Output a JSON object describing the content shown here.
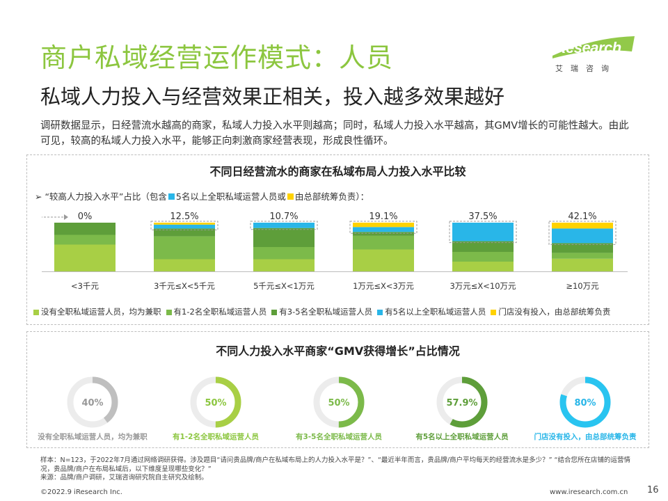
{
  "header": {
    "title": "商户私域经营运作模式：人员",
    "subtitle": "私域人力投入与经营效果正相关，投入越多效果越好",
    "intro": "调研数据显示，日经营流水越高的商家，私域人力投入水平则越高；同时，私域人力投入水平越高，其GMV增长的可能性越大。由此可见，较高的私域人力投入水平，能够正向刺激商家经营表现，形成良性循环。"
  },
  "logo": {
    "word": "iResearch",
    "cn": "艾瑞咨询"
  },
  "panel1": {
    "title": "不同日经营流水的商家在私域布局人力投入水平比较",
    "note_prefix": "➢  “较高人力投入水平”占比（包含",
    "note_mid": "5名以上全职私域运营人员或",
    "note_suffix": "由总部统筹负责）："
  },
  "panel2": {
    "title": "不同人力投入水平商家“GMV获得增长”占比情况"
  },
  "chart_data": [
    {
      "type": "bar",
      "stacked": true,
      "categories": [
        "<3千元",
        "3千元≤X<5千元",
        "5千元≤X<1万元",
        "1万元≤X<3万元",
        "3万元≤X<10万元",
        "≥10万元"
      ],
      "top_labels": [
        "0%",
        "12.5%",
        "10.7%",
        "19.1%",
        "37.5%",
        "42.1%"
      ],
      "series": [
        {
          "name": "没有全职私域运营人员，均为兼职",
          "color": "#a8cf45",
          "values": [
            55,
            25,
            25,
            45,
            20,
            26
          ]
        },
        {
          "name": "有1-2名全职私域运营人员",
          "color": "#7cba4a",
          "values": [
            20,
            47,
            25,
            28,
            20,
            12
          ]
        },
        {
          "name": "有3-5名全职私域运营人员",
          "color": "#5e9e3a",
          "values": [
            25,
            16,
            39,
            8,
            22,
            20
          ]
        },
        {
          "name": "有5名以上全职私域运营人员",
          "color": "#29b6e8",
          "values": [
            0,
            8,
            11,
            10,
            38,
            30
          ]
        },
        {
          "name": "门店没有投入，由总部统筹负责",
          "color": "#ffd200",
          "values": [
            0,
            4,
            0,
            9,
            0,
            12
          ]
        }
      ],
      "ylim": [
        0,
        100
      ]
    },
    {
      "type": "pie",
      "style": "donut",
      "categories": [
        "没有全职私域运营人员，均为兼职",
        "有1-2名全职私域运营人员",
        "有3-5名全职私域运营人员",
        "有5名以上全职私域运营人员",
        "门店没有投入，由总部统筹负责"
      ],
      "values": [
        40,
        50,
        50,
        57.9,
        80
      ],
      "value_labels": [
        "40%",
        "50%",
        "50%",
        "57.9%",
        "80%"
      ],
      "colors": [
        "#bfbfbf",
        "#a8cf45",
        "#7cba4a",
        "#5e9e3a",
        "#29c4f0"
      ]
    }
  ],
  "footer": {
    "note": "样本：N=123，于2022年7月通过网络调研获得。涉及题目“请问贵品牌/商户在私域布局上的人力投入水平是？”、“最近半年而言，贵品牌/商户平均每天的经营流水是多少？”   “结合您所在店铺的运营情况，贵品牌/商户在布局私域后，以下维度呈现哪些变化？”",
    "source": "来源：品牌/商户调研，艾瑞咨询研究院自主研究及绘制。",
    "copyright": "©2022.9 iResearch Inc.",
    "website": "www.iresearch.com.cn",
    "page": "16"
  }
}
